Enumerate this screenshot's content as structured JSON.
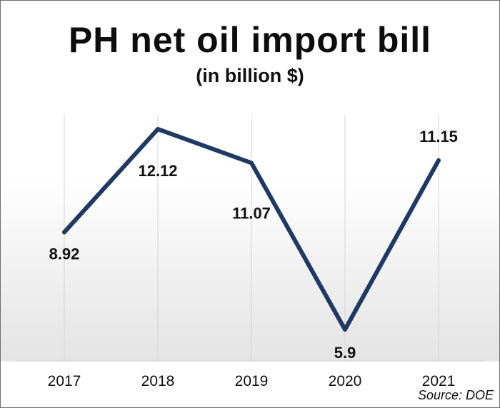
{
  "chart_data": {
    "type": "line",
    "title": "PH net oil import bill",
    "subtitle": "(in billion  $)",
    "categories": [
      "2017",
      "2018",
      "2019",
      "2020",
      "2021"
    ],
    "series": [
      {
        "values": [
          8.92,
          12.12,
          11.07,
          5.9,
          11.15
        ],
        "color": "#1f3864"
      }
    ],
    "data_labels": [
      "8.92",
      "12.12",
      "11.07",
      "5.9",
      "11.15"
    ],
    "grid": "vertical",
    "legend": "none",
    "source": "Source: DOE"
  }
}
